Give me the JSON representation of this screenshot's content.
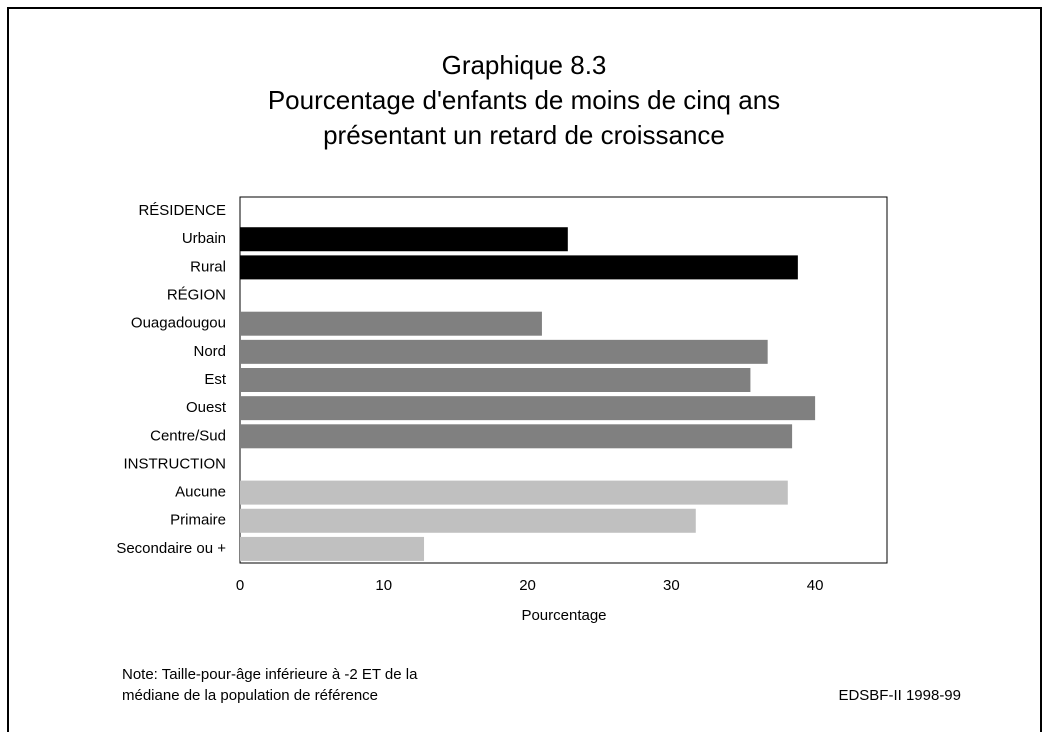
{
  "chart_data": {
    "type": "bar",
    "orientation": "horizontal",
    "title": [
      "Graphique 8.3",
      "Pourcentage d'enfants de moins de cinq ans",
      "présentant un retard de croissance"
    ],
    "categories": [
      "RÉSIDENCE",
      "Urbain",
      "Rural",
      "RÉGION",
      "Ouagadougou",
      "Nord",
      "Est",
      "Ouest",
      "Centre/Sud",
      "INSTRUCTION",
      "Aucune",
      "Primaire",
      "Secondaire ou +"
    ],
    "values": [
      null,
      22.8,
      38.8,
      null,
      21.0,
      36.7,
      35.5,
      40.0,
      38.4,
      null,
      38.1,
      31.7,
      12.8
    ],
    "colors": [
      null,
      "#000000",
      "#000000",
      null,
      "#808080",
      "#808080",
      "#808080",
      "#808080",
      "#808080",
      null,
      "#c0c0c0",
      "#c0c0c0",
      "#c0c0c0"
    ],
    "xlim": [
      0,
      45
    ],
    "xticks": [
      0,
      10,
      20,
      30,
      40
    ],
    "xlabel": "Pourcentage",
    "note": [
      "Note: Taille-pour-âge inférieure à -2 ET de la",
      "médiane de la population de référence"
    ],
    "source": "EDSBF-II 1998-99",
    "grid": false
  }
}
